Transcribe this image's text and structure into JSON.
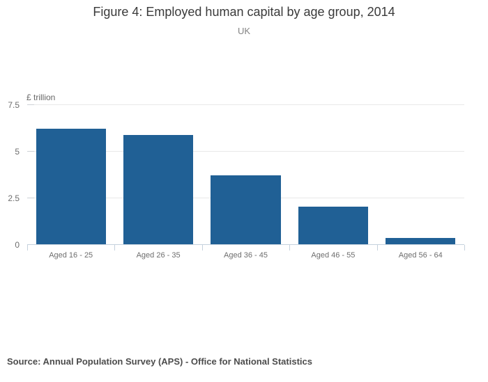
{
  "title": "Figure 4: Employed human capital by age group, 2014",
  "subtitle": "UK",
  "source_note": "Source: Annual Population Survey (APS) - Office for National Statistics",
  "chart_data": {
    "type": "bar",
    "title": "Figure 4: Employed human capital by age group, 2014",
    "subtitle": "UK",
    "categories": [
      "Aged 16 - 25",
      "Aged 26 - 35",
      "Aged 36 - 45",
      "Aged 46 - 55",
      "Aged 56 - 64"
    ],
    "values": [
      6.2,
      5.85,
      3.7,
      2.0,
      0.35
    ],
    "xlabel": "",
    "ylabel": "£ trillion",
    "ylim": [
      0,
      7.5
    ],
    "yticks": [
      0,
      2.5,
      5,
      7.5
    ],
    "ytick_labels": [
      "0",
      "2.5",
      "5",
      "7.5"
    ],
    "grid": true,
    "legend": "none",
    "bar_color": "#206095",
    "grid_color": "#e8e8e8",
    "axis_color": "#c5d1dd",
    "source": "Source: Annual Population Survey (APS) - Office for National Statistics"
  }
}
